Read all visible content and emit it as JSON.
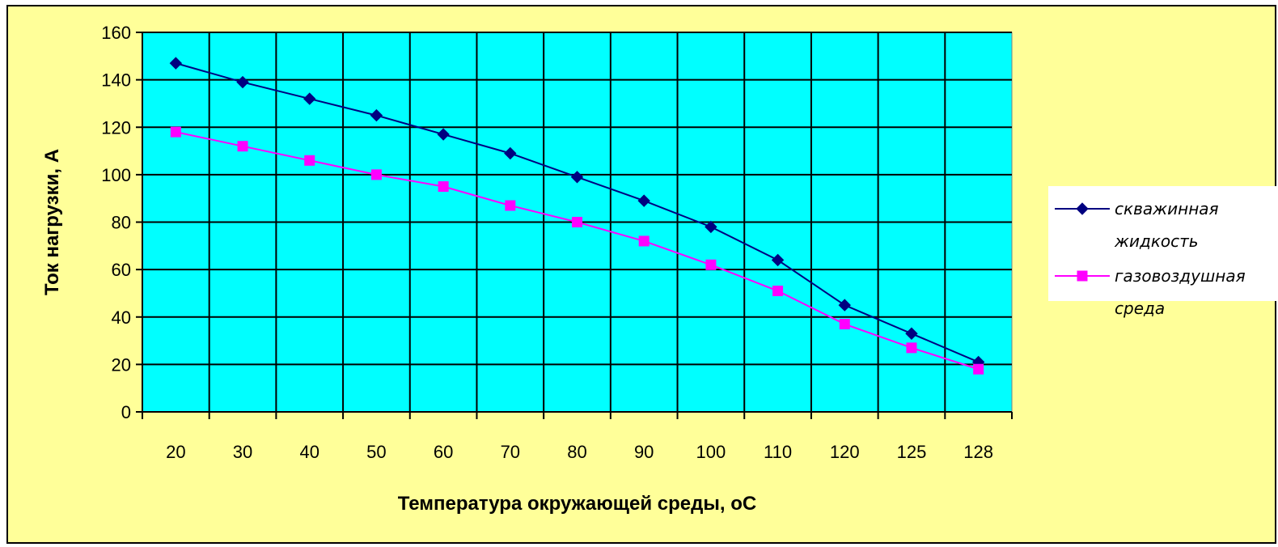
{
  "chart_data": {
    "type": "line",
    "title": "",
    "xlabel": "Температура окружающей среды, оС",
    "ylabel": "Ток нагрузки, А",
    "categories": [
      "20",
      "30",
      "40",
      "50",
      "60",
      "70",
      "80",
      "90",
      "100",
      "110",
      "120",
      "125",
      "128"
    ],
    "ylim": [
      0,
      160
    ],
    "yticks": [
      0,
      20,
      40,
      60,
      80,
      100,
      120,
      140,
      160
    ],
    "grid": true,
    "legend_position": "right",
    "plot_background": "#00ffff",
    "chart_background": "#ffff99",
    "series": [
      {
        "name": "скважинная жидкость",
        "legend_lines": [
          "скважинная",
          "жидкость"
        ],
        "marker": "diamond",
        "color": "#000080",
        "values": [
          147,
          139,
          132,
          125,
          117,
          109,
          99,
          89,
          78,
          64,
          45,
          33,
          21
        ]
      },
      {
        "name": "газовоздушная среда",
        "legend_lines": [
          "газовоздушная",
          "среда"
        ],
        "marker": "square",
        "color": "#ff00ff",
        "values": [
          118,
          112,
          106,
          100,
          95,
          87,
          80,
          72,
          62,
          51,
          37,
          27,
          18
        ]
      }
    ]
  }
}
